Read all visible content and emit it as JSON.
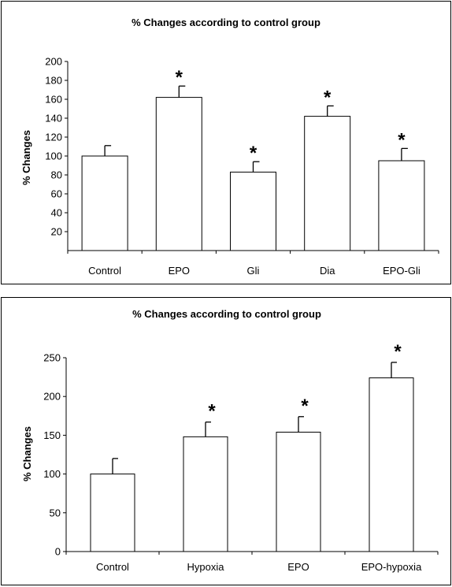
{
  "chart_data": [
    {
      "type": "bar",
      "title": "% Changes according to control group",
      "xlabel": "",
      "ylabel": "% Changes",
      "categories": [
        "Control",
        "EPO",
        "Gli",
        "Dia",
        "EPO-Gli"
      ],
      "values": [
        100,
        162,
        83,
        142,
        95
      ],
      "errors": [
        11,
        12,
        11,
        11,
        13
      ],
      "significance": [
        "",
        "*",
        "*",
        "*",
        "*"
      ],
      "ylim": [
        0,
        200
      ],
      "yticks": [
        20,
        40,
        60,
        80,
        100,
        120,
        140,
        160,
        180,
        200
      ],
      "grid": false,
      "bar_color": "#ffffff",
      "line_color": "#000000"
    },
    {
      "type": "bar",
      "title": "% Changes according to control group",
      "xlabel": "",
      "ylabel": "% Changes",
      "categories": [
        "Control",
        "Hypoxia",
        "EPO",
        "EPO-hypoxia"
      ],
      "values": [
        100,
        148,
        154,
        224
      ],
      "errors": [
        20,
        19,
        20,
        20
      ],
      "significance": [
        "",
        "*",
        "*",
        "*"
      ],
      "ylim": [
        0,
        250
      ],
      "yticks": [
        0,
        50,
        100,
        150,
        200,
        250
      ],
      "grid": false,
      "bar_color": "#ffffff",
      "line_color": "#000000"
    }
  ]
}
